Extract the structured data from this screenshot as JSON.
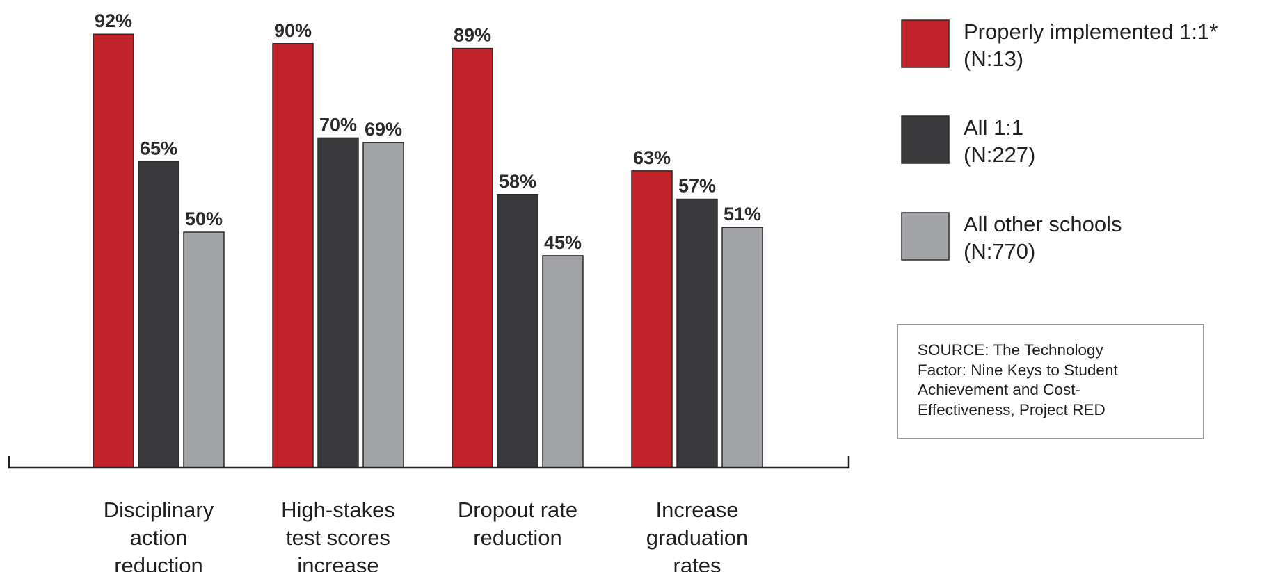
{
  "chart_data": {
    "type": "bar",
    "categories": [
      [
        "Disciplinary",
        "action",
        "reduction"
      ],
      [
        "High-stakes",
        "test scores",
        "increase"
      ],
      [
        "Dropout rate",
        "reduction"
      ],
      [
        "Increase",
        "graduation",
        "rates"
      ]
    ],
    "series": [
      {
        "name": "Properly implemented 1:1*",
        "n_label": "(N:13)",
        "color": "#c0232a",
        "values": [
          92,
          90,
          89,
          63
        ]
      },
      {
        "name": "All 1:1",
        "n_label": "(N:227)",
        "color": "#3a3a3c",
        "values": [
          65,
          70,
          58,
          57
        ]
      },
      {
        "name": "All other schools",
        "n_label": "(N:770)",
        "color": "#a2a3a6",
        "values": [
          50,
          69,
          45,
          51
        ]
      }
    ],
    "value_suffix": "%",
    "ylim": [
      0,
      100
    ],
    "grid": false,
    "legend_position": "right"
  },
  "source": {
    "lines": [
      "SOURCE: The Technology",
      "Factor: Nine Keys to Student",
      "Achievement and Cost-",
      "Effectiveness, Project RED"
    ]
  }
}
